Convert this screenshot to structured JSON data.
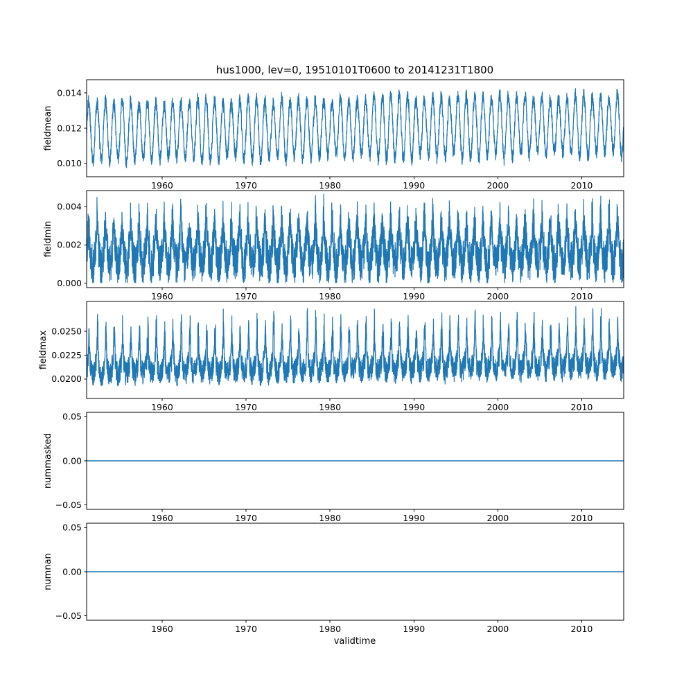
{
  "figure": {
    "title": "hus1000, lev=0, 19510101T0600 to 20141231T1800",
    "xlabel": "validtime",
    "line_color": "#1f77b4",
    "background_color": "#ffffff",
    "x_start": 1951,
    "x_end": 2015
  },
  "chart_data": [
    {
      "type": "line",
      "ylabel": "fieldmean",
      "x_range": [
        1951,
        2015
      ],
      "xticks": [
        1960,
        1970,
        1980,
        1990,
        2000,
        2010
      ],
      "ylim": [
        0.00925,
        0.01475
      ],
      "yticks": [
        0.01,
        0.012,
        0.014
      ],
      "ytick_labels": [
        "0.010",
        "0.012",
        "0.014"
      ],
      "approx_value_range": [
        0.0096,
        0.0144
      ],
      "grid": false,
      "series": {
        "name": "fieldmean",
        "kind": "seasonal",
        "base": 0.0118,
        "trend_total": 0.0004,
        "amplitude": 0.00165,
        "amp_jitter": 0.12,
        "noise": 0.00038,
        "phase": 0.0,
        "points_per_year": 64
      }
    },
    {
      "type": "line",
      "ylabel": "fieldmin",
      "x_range": [
        1951,
        2015
      ],
      "xticks": [
        1960,
        1970,
        1980,
        1990,
        2000,
        2010
      ],
      "ylim": [
        -0.00023,
        0.00483
      ],
      "yticks": [
        0.0,
        0.002,
        0.004
      ],
      "ytick_labels": [
        "0.000",
        "0.002",
        "0.004"
      ],
      "approx_value_range": [
        0.0,
        0.0046
      ],
      "grid": false,
      "series": {
        "name": "fieldmin",
        "kind": "seasonal",
        "base": 0.00155,
        "trend_total": 0.0001,
        "amplitude": 0.00065,
        "amp_jitter": 0.2,
        "noise": 0.00105,
        "spike_amplitude": 0.0014,
        "spike_power": 5,
        "spike_phase": 0.0,
        "clamp_min": 3e-05,
        "phase": 0.0,
        "points_per_year": 64
      }
    },
    {
      "type": "line",
      "ylabel": "fieldmax",
      "x_range": [
        1951,
        2015
      ],
      "xticks": [
        1960,
        1970,
        1980,
        1990,
        2000,
        2010
      ],
      "ylim": [
        0.01795,
        0.02815
      ],
      "yticks": [
        0.02,
        0.0225,
        0.025
      ],
      "ytick_labels": [
        "0.0200",
        "0.0225",
        "0.0250"
      ],
      "approx_value_range": [
        0.0185,
        0.0277
      ],
      "grid": false,
      "series": {
        "name": "fieldmax",
        "kind": "seasonal",
        "base": 0.0211,
        "trend_total": 0.0006,
        "amplitude": 0.0007,
        "amp_jitter": 0.25,
        "noise": 0.00125,
        "spike_amplitude": 0.0048,
        "spike_power": 6,
        "spike_phase": 0.05,
        "phase": 0.0,
        "points_per_year": 64
      }
    },
    {
      "type": "line",
      "ylabel": "nummasked",
      "x_range": [
        1951,
        2015
      ],
      "xticks": [
        1960,
        1970,
        1980,
        1990,
        2000,
        2010
      ],
      "ylim": [
        -0.055,
        0.055
      ],
      "yticks": [
        -0.05,
        0.0,
        0.05
      ],
      "ytick_labels": [
        "−0.05",
        "0.00",
        "0.05"
      ],
      "approx_value_range": [
        0.0,
        0.0
      ],
      "grid": false,
      "series": {
        "name": "nummasked",
        "kind": "constant",
        "value": 0.0
      }
    },
    {
      "type": "line",
      "ylabel": "numnan",
      "x_range": [
        1951,
        2015
      ],
      "xticks": [
        1960,
        1970,
        1980,
        1990,
        2000,
        2010
      ],
      "ylim": [
        -0.055,
        0.055
      ],
      "yticks": [
        -0.05,
        0.0,
        0.05
      ],
      "ytick_labels": [
        "−0.05",
        "0.00",
        "0.05"
      ],
      "approx_value_range": [
        0.0,
        0.0
      ],
      "grid": false,
      "series": {
        "name": "numnan",
        "kind": "constant",
        "value": 0.0
      }
    }
  ]
}
